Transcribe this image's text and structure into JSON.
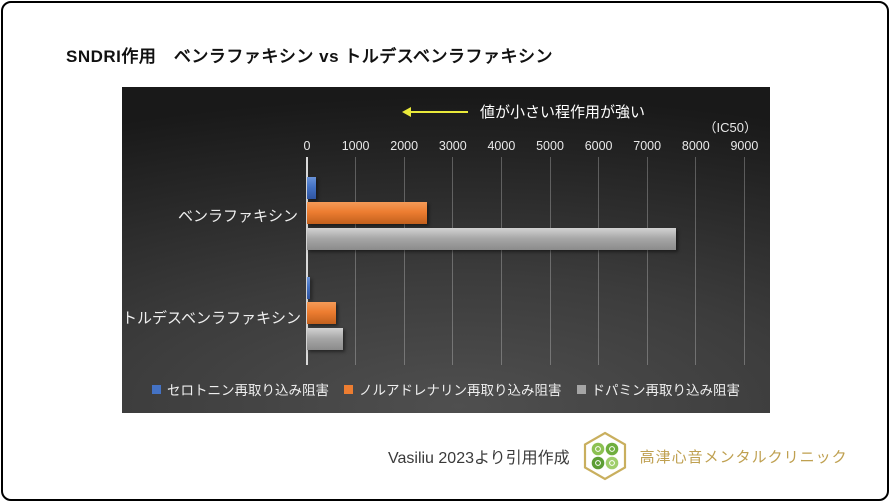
{
  "frame": {
    "title": "SNDRI作用　ベンラファキシン vs トルデスベンラファキシン",
    "attribution": "Vasiliu 2023より引用作成",
    "clinic_name": "高津心音メンタルクリニック"
  },
  "chart": {
    "annotation": "値が小さい程作用が強い",
    "unit_label": "（IC50）",
    "axis_ticks": [
      "0",
      "1000",
      "2000",
      "3000",
      "4000",
      "5000",
      "6000",
      "7000",
      "8000",
      "9000"
    ],
    "colors": {
      "serotonin": "#4472C4",
      "noradrenaline": "#ED7D31",
      "dopamine": "#A5A5A5",
      "arrow": "#e9e93a",
      "background_dark": "#262626"
    }
  },
  "chart_data": {
    "type": "bar",
    "orientation": "horizontal",
    "title": "SNDRI作用　ベンラファキシン vs トルデスベンラファキシン",
    "categories": [
      "ベンラファキシン",
      "トルデスベンラファキシン"
    ],
    "series": [
      {
        "name": "セロトニン再取り込み阻害",
        "color": "#4472C4",
        "values": [
          190,
          55
        ]
      },
      {
        "name": "ノルアドレナリン再取り込み阻害",
        "color": "#ED7D31",
        "values": [
          2470,
          600
        ]
      },
      {
        "name": "ドパミン再取り込み阻害",
        "color": "#A5A5A5",
        "values": [
          7600,
          750
        ]
      }
    ],
    "xlim": [
      0,
      9000
    ],
    "x_tick_step": 1000,
    "xlabel": "（IC50）",
    "annotation": "値が小さい程作用が強い",
    "legend_position": "bottom",
    "grid": true
  }
}
